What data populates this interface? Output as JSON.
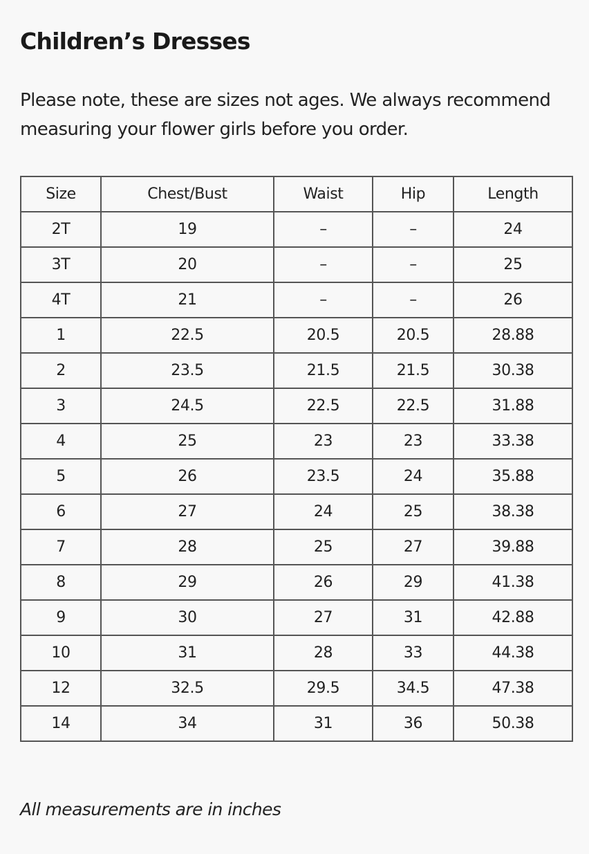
{
  "title": "Children’s Dresses",
  "note": "Please note, these are sizes not ages. We always recommend measuring your flower girls before you order.",
  "table": {
    "headers": [
      "Size",
      "Chest/Bust",
      "Waist",
      "Hip",
      "Length"
    ],
    "rows": [
      [
        "2T",
        "19",
        "–",
        "–",
        "24"
      ],
      [
        "3T",
        "20",
        "–",
        "–",
        "25"
      ],
      [
        "4T",
        "21",
        "–",
        "–",
        "26"
      ],
      [
        "1",
        "22.5",
        "20.5",
        "20.5",
        "28.88"
      ],
      [
        "2",
        "23.5",
        "21.5",
        "21.5",
        "30.38"
      ],
      [
        "3",
        "24.5",
        "22.5",
        "22.5",
        "31.88"
      ],
      [
        "4",
        "25",
        "23",
        "23",
        "33.38"
      ],
      [
        "5",
        "26",
        "23.5",
        "24",
        "35.88"
      ],
      [
        "6",
        "27",
        "24",
        "25",
        "38.38"
      ],
      [
        "7",
        "28",
        "25",
        "27",
        "39.88"
      ],
      [
        "8",
        "29",
        "26",
        "29",
        "41.38"
      ],
      [
        "9",
        "30",
        "27",
        "31",
        "42.88"
      ],
      [
        "10",
        "31",
        "28",
        "33",
        "44.38"
      ],
      [
        "12",
        "32.5",
        "29.5",
        "34.5",
        "47.38"
      ],
      [
        "14",
        "34",
        "31",
        "36",
        "50.38"
      ]
    ]
  },
  "footnote": "All measurements are in inches"
}
